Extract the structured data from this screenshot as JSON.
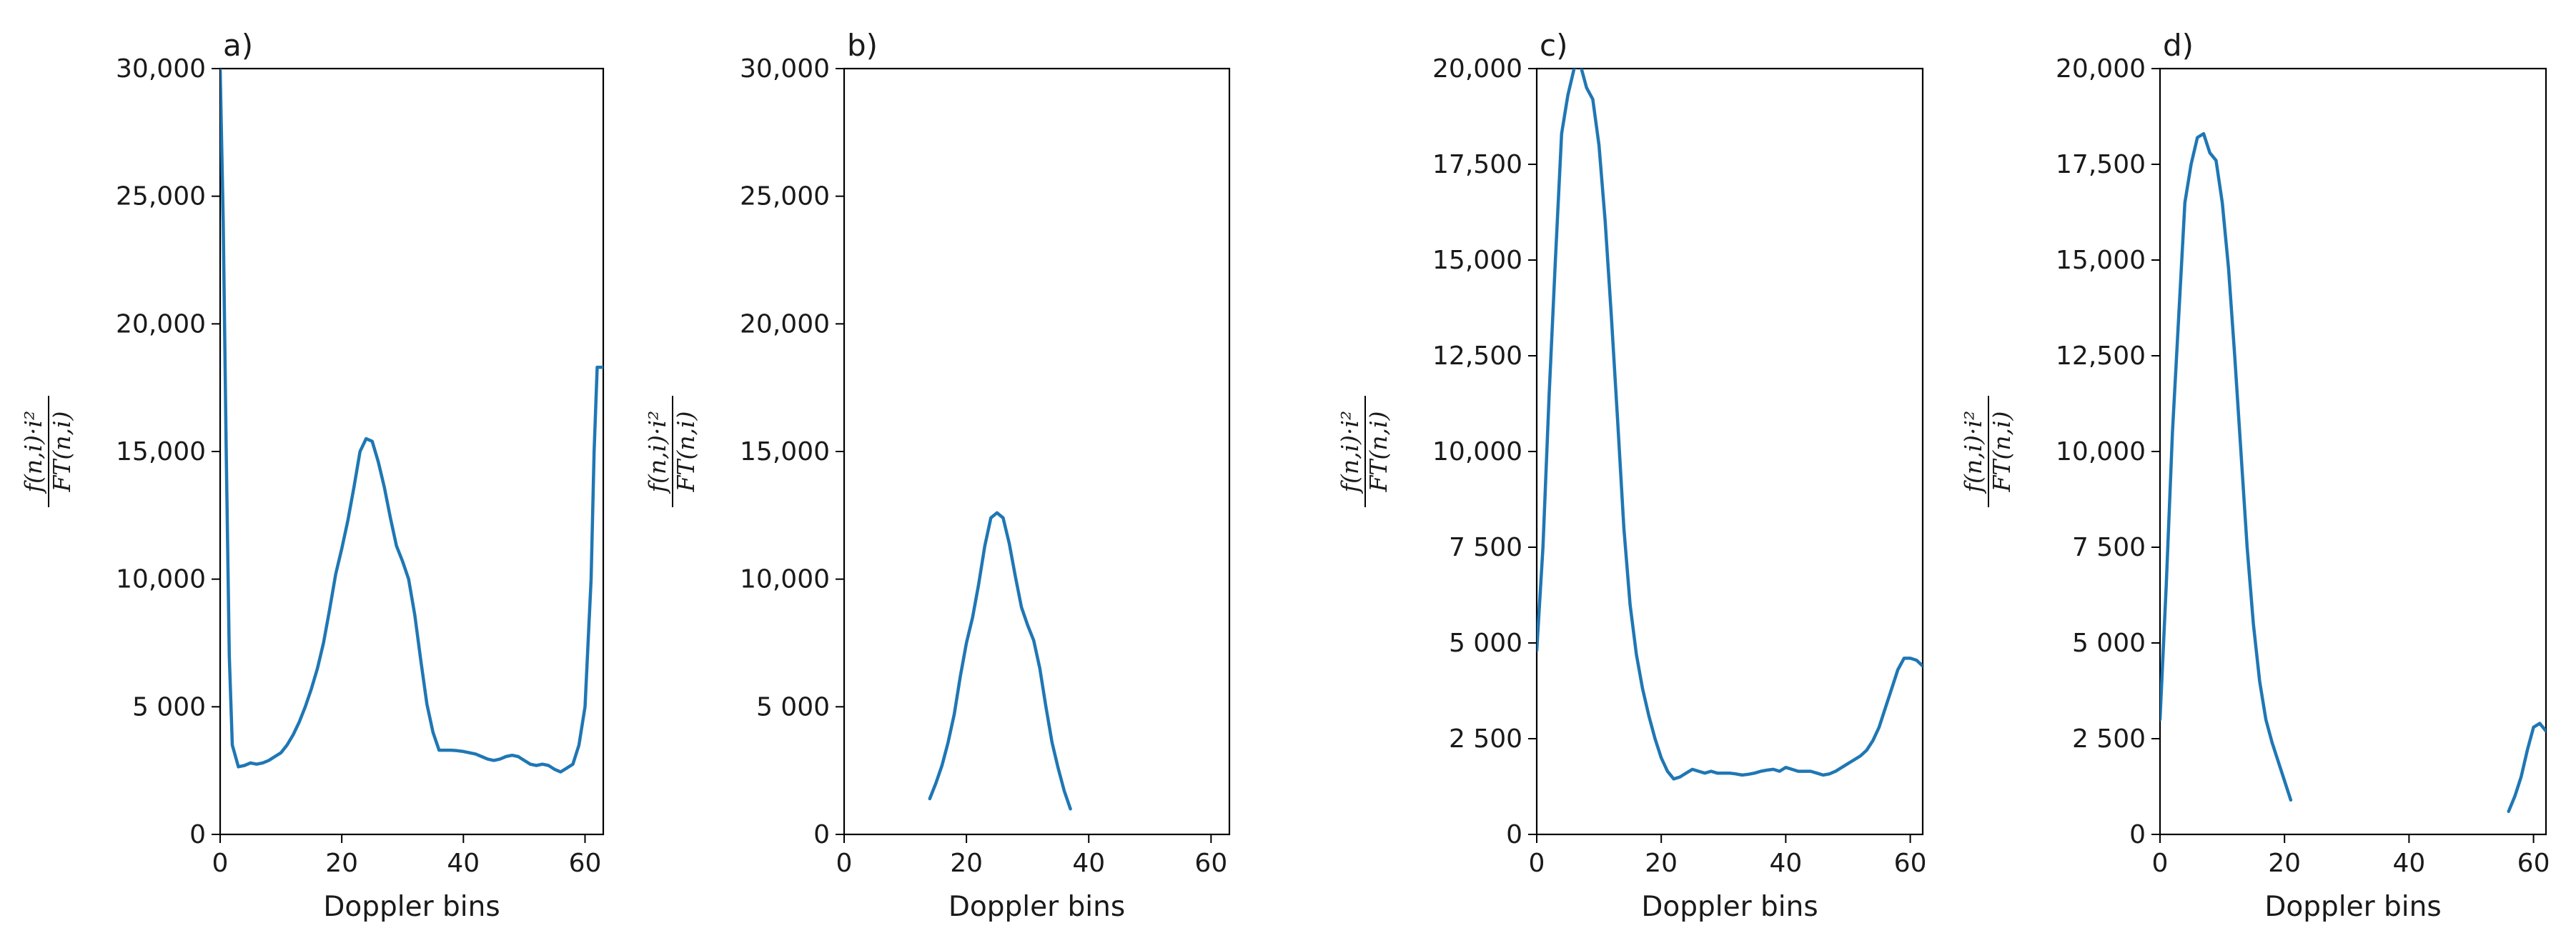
{
  "chart_data": [
    {
      "type": "line",
      "panel_label": "a)",
      "xlabel": "Doppler bins",
      "ylabel_numerator": "f(n,i)·i²",
      "ylabel_denominator": "FT(n,i)",
      "xlim": [
        0,
        63
      ],
      "ylim": [
        0,
        30000
      ],
      "xticks": [
        0,
        20,
        40,
        60
      ],
      "xtick_labels": [
        "0",
        "20",
        "40",
        "60"
      ],
      "yticks": [
        0,
        5000,
        10000,
        15000,
        20000,
        25000,
        30000
      ],
      "ytick_labels": [
        "0",
        "5 000",
        "10,000",
        "15,000",
        "20,000",
        "25,000",
        "30,000"
      ],
      "line_color": "#1f77b4",
      "x": [
        0,
        0.5,
        1,
        1.5,
        2,
        3,
        4,
        5,
        6,
        7,
        8,
        9,
        10,
        11,
        12,
        13,
        14,
        15,
        16,
        17,
        18,
        19,
        20,
        21,
        22,
        23,
        24,
        25,
        26,
        27,
        28,
        29,
        30,
        31,
        32,
        33,
        34,
        35,
        36,
        37,
        38,
        39,
        40,
        41,
        42,
        43,
        44,
        45,
        46,
        47,
        48,
        49,
        50,
        51,
        52,
        53,
        54,
        55,
        56,
        57,
        58,
        59,
        60,
        61,
        61.5,
        62,
        62.5,
        63
      ],
      "y": [
        30000,
        24000,
        15000,
        7000,
        3500,
        2650,
        2700,
        2800,
        2750,
        2800,
        2900,
        3050,
        3200,
        3500,
        3900,
        4400,
        5000,
        5700,
        6500,
        7500,
        8800,
        10200,
        11200,
        12300,
        13600,
        15000,
        15500,
        15400,
        14600,
        13600,
        12400,
        11300,
        10700,
        10000,
        8600,
        6800,
        5100,
        4000,
        3300,
        3300,
        3300,
        3280,
        3250,
        3200,
        3150,
        3050,
        2950,
        2900,
        2950,
        3050,
        3100,
        3050,
        2900,
        2750,
        2700,
        2750,
        2700,
        2550,
        2450,
        2600,
        2750,
        3500,
        5000,
        10000,
        15000,
        18300,
        18300,
        18300
      ]
    },
    {
      "type": "line",
      "panel_label": "b)",
      "xlabel": "Doppler bins",
      "ylabel_numerator": "f(n,i)·i²",
      "ylabel_denominator": "FT(n,i)",
      "xlim": [
        0,
        63
      ],
      "ylim": [
        0,
        30000
      ],
      "xticks": [
        0,
        20,
        40,
        60
      ],
      "xtick_labels": [
        "0",
        "20",
        "40",
        "60"
      ],
      "yticks": [
        0,
        5000,
        10000,
        15000,
        20000,
        25000,
        30000
      ],
      "ytick_labels": [
        "0",
        "5 000",
        "10,000",
        "15,000",
        "20,000",
        "25,000",
        "30,000"
      ],
      "line_color": "#1f77b4",
      "x": [
        14,
        15,
        16,
        17,
        18,
        19,
        20,
        21,
        22,
        23,
        24,
        25,
        26,
        27,
        28,
        29,
        30,
        31,
        32,
        33,
        34,
        35,
        36,
        37
      ],
      "y": [
        1400,
        2000,
        2700,
        3600,
        4700,
        6200,
        7500,
        8500,
        9800,
        11300,
        12400,
        12600,
        12400,
        11400,
        10100,
        8900,
        8200,
        7600,
        6500,
        5000,
        3600,
        2600,
        1700,
        1000
      ]
    },
    {
      "type": "line",
      "panel_label": "c)",
      "xlabel": "Doppler bins",
      "ylabel_numerator": "f(n,i)·i²",
      "ylabel_denominator": "FT(n,i)",
      "xlim": [
        0,
        62
      ],
      "ylim": [
        0,
        20000
      ],
      "xticks": [
        0,
        20,
        40,
        60
      ],
      "xtick_labels": [
        "0",
        "20",
        "40",
        "60"
      ],
      "yticks": [
        0,
        2500,
        5000,
        7500,
        10000,
        12500,
        15000,
        17500,
        20000
      ],
      "ytick_labels": [
        "0",
        "2 500",
        "5 000",
        "7 500",
        "10,000",
        "12,500",
        "15,000",
        "17,500",
        "20,000"
      ],
      "line_color": "#1f77b4",
      "x": [
        0,
        1,
        2,
        3,
        4,
        5,
        6,
        7,
        8,
        9,
        10,
        11,
        12,
        13,
        14,
        15,
        16,
        17,
        18,
        19,
        20,
        21,
        22,
        23,
        24,
        25,
        26,
        27,
        28,
        29,
        30,
        31,
        32,
        33,
        34,
        35,
        36,
        37,
        38,
        39,
        40,
        41,
        42,
        43,
        44,
        45,
        46,
        47,
        48,
        49,
        50,
        51,
        52,
        53,
        54,
        55,
        56,
        57,
        58,
        59,
        60,
        61,
        62
      ],
      "y": [
        4800,
        7500,
        11500,
        15000,
        18300,
        19300,
        20000,
        20100,
        19500,
        19200,
        18000,
        16000,
        13500,
        10800,
        8000,
        6000,
        4700,
        3800,
        3100,
        2500,
        2000,
        1650,
        1450,
        1500,
        1600,
        1700,
        1650,
        1600,
        1650,
        1600,
        1600,
        1600,
        1580,
        1550,
        1570,
        1600,
        1650,
        1680,
        1700,
        1650,
        1750,
        1700,
        1650,
        1650,
        1650,
        1600,
        1550,
        1580,
        1650,
        1750,
        1850,
        1950,
        2050,
        2200,
        2450,
        2800,
        3300,
        3800,
        4300,
        4600,
        4600,
        4550,
        4400
      ]
    },
    {
      "type": "line",
      "panel_label": "d)",
      "xlabel": "Doppler bins",
      "ylabel_numerator": "f(n,i)·i²",
      "ylabel_denominator": "FT(n,i)",
      "xlim": [
        0,
        62
      ],
      "ylim": [
        0,
        20000
      ],
      "xticks": [
        0,
        20,
        40,
        60
      ],
      "xtick_labels": [
        "0",
        "20",
        "40",
        "60"
      ],
      "yticks": [
        0,
        2500,
        5000,
        7500,
        10000,
        12500,
        15000,
        17500,
        20000
      ],
      "ytick_labels": [
        "0",
        "2 500",
        "5 000",
        "7 500",
        "10,000",
        "12,500",
        "15,000",
        "17,500",
        "20,000"
      ],
      "line_color": "#1f77b4",
      "segments": [
        {
          "x": [
            0,
            1,
            2,
            3,
            4,
            5,
            6,
            7,
            8,
            9,
            10,
            11,
            12,
            13,
            14,
            15,
            16,
            17,
            18,
            19,
            20,
            21
          ],
          "y": [
            3000,
            6500,
            10500,
            13500,
            16500,
            17500,
            18200,
            18300,
            17800,
            17600,
            16500,
            14800,
            12500,
            10000,
            7500,
            5500,
            4000,
            3000,
            2400,
            1900,
            1400,
            900
          ]
        },
        {
          "x": [
            56,
            57,
            58,
            59,
            60,
            61,
            62
          ],
          "y": [
            600,
            1000,
            1500,
            2200,
            2800,
            2900,
            2700
          ]
        }
      ]
    }
  ]
}
